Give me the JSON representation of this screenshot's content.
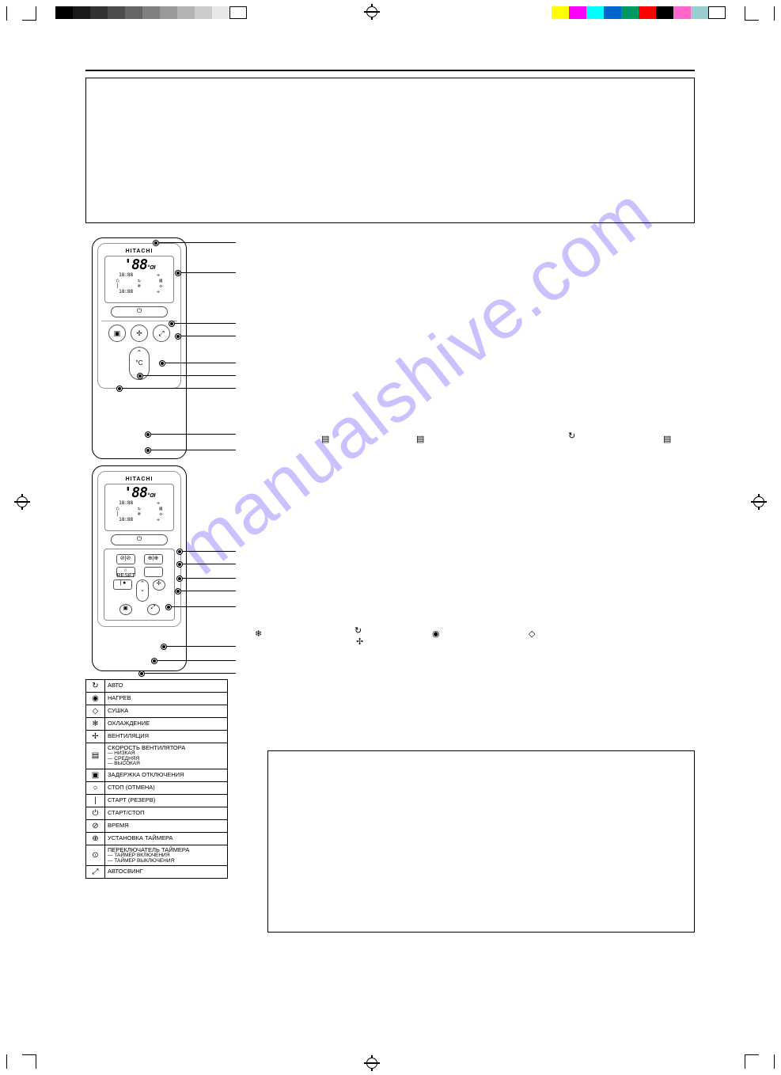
{
  "colors": {
    "watermark": "#8a7aff",
    "border": "#000000",
    "bg": "#ffffff",
    "gray_steps": [
      "#000000",
      "#1a1a1a",
      "#333333",
      "#4d4d4d",
      "#666666",
      "#808080",
      "#999999",
      "#b3b3b3",
      "#cccccc",
      "#e8e8e8",
      "#ffffff"
    ],
    "cmyk_steps": [
      "#ffff00",
      "#ff00ff",
      "#00ffff",
      "#0066cc",
      "#009966",
      "#ff0000",
      "#000000",
      "#ff66cc",
      "#99cccc",
      "#ffffff"
    ]
  },
  "watermark_text": "manualshive.com",
  "remote": {
    "brand": "HITACHI",
    "display_temp": "'88",
    "unit": "°CH",
    "time1": "18:88",
    "time2": "18:88"
  },
  "legend": {
    "rows": [
      {
        "icon": "↻",
        "label": "АВТО"
      },
      {
        "icon": "◉",
        "label": "НАГРЕВ"
      },
      {
        "icon": "◇",
        "label": "СУШКА"
      },
      {
        "icon": "❄",
        "label": "ОХЛАЖДЕНИЕ"
      },
      {
        "icon": "✢",
        "label": "ВЕНТИЛЯЦИЯ"
      },
      {
        "icon": "▤",
        "label": "СКОРОСТЬ ВЕНТИЛЯТОРА",
        "sub": [
          "НИЗКАЯ",
          "СРЕДНЯЯ",
          "ВЫСОКАЯ"
        ]
      },
      {
        "icon": "▣",
        "label": "ЗАДЕРЖКА ОТКЛЮЧЕНИЯ"
      },
      {
        "icon": "○",
        "label": "СТОП (ОТМЕНА)"
      },
      {
        "icon": "|",
        "label": "СТАРТ (РЕЗЕРВ)"
      },
      {
        "icon": "⏻",
        "label": "СТАРТ/СТОП"
      },
      {
        "icon": "⊘",
        "label": "ВРЕМЯ"
      },
      {
        "icon": "⊕",
        "label": "УСТАНОВКА ТАЙМЕРА"
      },
      {
        "icon": "⊙",
        "label": "ПЕРЕКЛЮЧАТЕЛЬ ТАЙМЕРА",
        "sub": [
          "ТАЙМЕР ВКЛЮЧЕНИЯ",
          "ТАЙМЕР ВЫКЛЮЧЕНИЯ"
        ]
      },
      {
        "icon": "⤢",
        "label": "АВТОСВИНГ"
      }
    ]
  },
  "inline_icons_row1": [
    "▤",
    "▤",
    "↻",
    "▤"
  ],
  "inline_icons_row2": [
    "❄",
    "↻",
    "✢",
    "◉",
    "◇"
  ]
}
